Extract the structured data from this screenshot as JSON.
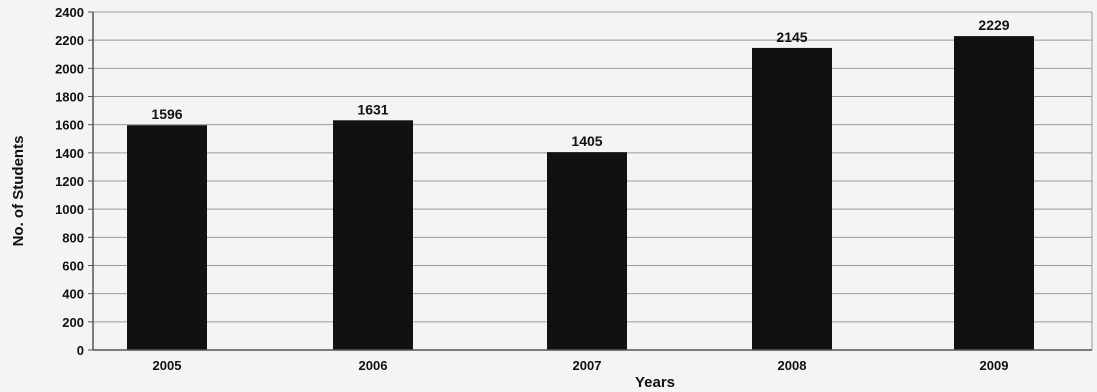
{
  "chart_data": {
    "type": "bar",
    "title": "",
    "xlabel": "Years",
    "ylabel": "No. of Students",
    "categories": [
      "2005",
      "2006",
      "2007",
      "2008",
      "2009"
    ],
    "values": [
      1596,
      1631,
      1405,
      2145,
      2229
    ],
    "data_labels": [
      "1596",
      "1631",
      "1405",
      "2145",
      "2229"
    ],
    "y_ticks": [
      "0",
      "200",
      "400",
      "600",
      "800",
      "1000",
      "1200",
      "1400",
      "1600",
      "1800",
      "2000",
      "2200",
      "2400"
    ],
    "ylim": [
      0,
      2400
    ],
    "grid": "horizontal",
    "legend": "none",
    "colors": {
      "bar": "#111111",
      "grid": "#9a9a9a",
      "axis": "#555555",
      "plot_background": "#f4f4f2"
    }
  }
}
